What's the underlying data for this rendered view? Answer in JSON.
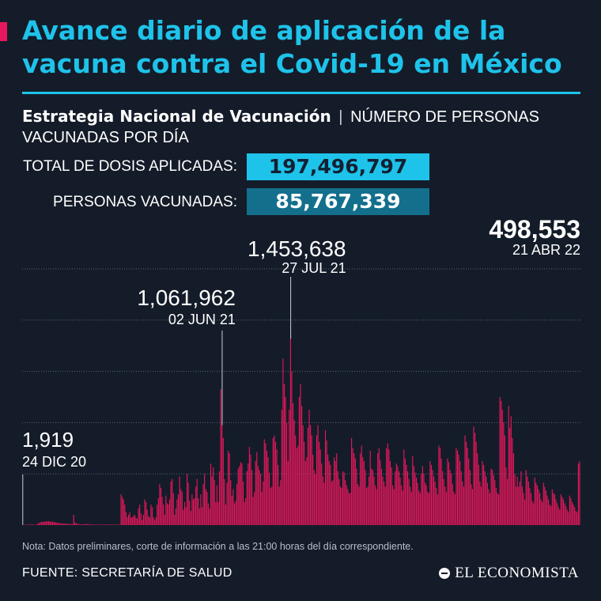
{
  "header": {
    "title": "Avance diario de aplicación de la vacuna contra el Covid-19 en México",
    "subtitle_strong": "Estrategia Nacional de Vacunación",
    "subtitle_sep": "|",
    "subtitle_rest": "NÚMERO DE PERSONAS VACUNADAS POR DÍA"
  },
  "stats": {
    "total_label": "TOTAL DE DOSIS APLICADAS:",
    "total_value": "197,496,797",
    "people_label": "PERSONAS VACUNADAS:",
    "people_value": "85,767,339"
  },
  "annotations": [
    {
      "id": "first",
      "value": "1,919",
      "date": "24 DIC 20",
      "day_index": 0
    },
    {
      "id": "jun",
      "value": "1,061,962",
      "date": "02 JUN 21",
      "day_index": 160
    },
    {
      "id": "jul",
      "value": "1,453,638",
      "date": "27 JUL 21",
      "day_index": 215
    },
    {
      "id": "last",
      "value": "498,553",
      "date": "21 ABR 22",
      "day_index": 483
    }
  ],
  "footer": {
    "note": "Nota: Datos preliminares, corte de información a las 21:00 horas del día correspondiente.",
    "source": "FUENTE: SECRETARÍA DE SALUD",
    "logo": "EL ECONOMISTA",
    "logo_icon": "el-economista-logo-icon"
  },
  "colors": {
    "background": "#141c29",
    "title": "#1ec3ea",
    "bars": "#e6175c",
    "total_box": "#1ec3ea",
    "people_box": "#146f8d"
  },
  "chart_data": {
    "type": "bar",
    "title": "",
    "xlabel": "",
    "ylabel": "",
    "x_start": "2020-12-24",
    "x_end": "2022-04-21",
    "ylim": [
      0,
      2000000
    ],
    "grid": true,
    "gridline_values": [
      400000,
      800000,
      1200000,
      1600000,
      2000000
    ],
    "series": [
      {
        "name": "",
        "note": "daily values estimated from the chart, one value per day",
        "values": [
          1919,
          2500,
          3000,
          3500,
          3500,
          4000,
          4500,
          4500,
          5000,
          3000,
          2500,
          2000,
          10000,
          15000,
          20000,
          25000,
          25000,
          25000,
          28000,
          28000,
          30000,
          30000,
          28000,
          26000,
          26000,
          24000,
          22000,
          20000,
          18000,
          16000,
          14000,
          14000,
          13000,
          12000,
          12000,
          11000,
          10000,
          9000,
          9000,
          8000,
          8000,
          80000,
          20000,
          15000,
          10000,
          8000,
          6000,
          5000,
          6000,
          7000,
          8000,
          8000,
          7000,
          6000,
          6000,
          5000,
          5000,
          4000,
          4000,
          4000,
          4000,
          4000,
          4000,
          4000,
          4000,
          4000,
          4000,
          4000,
          4000,
          4000,
          4000,
          4000,
          4000,
          4000,
          4000,
          4000,
          4000,
          4000,
          4000,
          240000,
          220000,
          200000,
          160000,
          100000,
          60000,
          80000,
          100000,
          60000,
          60000,
          70000,
          80000,
          60000,
          50000,
          130000,
          160000,
          90000,
          40000,
          80000,
          200000,
          180000,
          120000,
          70000,
          60000,
          160000,
          140000,
          60000,
          40000,
          60000,
          160000,
          210000,
          320000,
          290000,
          220000,
          160000,
          80000,
          230000,
          170000,
          160000,
          200000,
          340000,
          360000,
          250000,
          80000,
          130000,
          200000,
          240000,
          380000,
          280000,
          260000,
          120000,
          180000,
          140000,
          400000,
          330000,
          190000,
          110000,
          240000,
          200000,
          210000,
          300000,
          360000,
          210000,
          130000,
          240000,
          140000,
          320000,
          400000,
          280000,
          260000,
          170000,
          130000,
          480000,
          380000,
          450000,
          350000,
          180000,
          310000,
          180000,
          420000,
          1061962,
          780000,
          680000,
          360000,
          160000,
          330000,
          580000,
          560000,
          350000,
          230000,
          280000,
          170000,
          190000,
          320000,
          440000,
          460000,
          490000,
          480000,
          340000,
          180000,
          210000,
          420000,
          480000,
          610000,
          550000,
          430000,
          220000,
          260000,
          500000,
          570000,
          460000,
          430000,
          400000,
          260000,
          340000,
          670000,
          640000,
          580000,
          530000,
          410000,
          290000,
          300000,
          680000,
          700000,
          650000,
          590000,
          470000,
          300000,
          350000,
          900000,
          1300000,
          1100000,
          1000000,
          800000,
          500000,
          900000,
          1453638,
          1200000,
          950000,
          820000,
          700000,
          600000,
          620000,
          1000000,
          1100000,
          930000,
          780000,
          650000,
          500000,
          530000,
          760000,
          900000,
          780000,
          700000,
          550000,
          430000,
          400000,
          700000,
          780000,
          650000,
          590000,
          480000,
          380000,
          330000,
          740000,
          660000,
          550000,
          500000,
          470000,
          340000,
          350000,
          530000,
          500000,
          560000,
          420000,
          360000,
          300000,
          290000,
          420000,
          410000,
          350000,
          310000,
          280000,
          250000,
          250000,
          680000,
          600000,
          560000,
          520000,
          440000,
          320000,
          300000,
          560000,
          620000,
          530000,
          500000,
          430000,
          290000,
          300000,
          380000,
          580000,
          440000,
          430000,
          380000,
          310000,
          280000,
          560000,
          600000,
          510000,
          440000,
          380000,
          340000,
          300000,
          600000,
          640000,
          590000,
          500000,
          450000,
          310000,
          280000,
          420000,
          480000,
          460000,
          420000,
          370000,
          310000,
          270000,
          590000,
          520000,
          470000,
          420000,
          360000,
          300000,
          260000,
          540000,
          460000,
          410000,
          370000,
          330000,
          270000,
          250000,
          400000,
          460000,
          400000,
          330000,
          310000,
          260000,
          250000,
          500000,
          470000,
          430000,
          380000,
          340000,
          290000,
          240000,
          620000,
          600000,
          520000,
          420000,
          360000,
          300000,
          260000,
          520000,
          490000,
          430000,
          400000,
          320000,
          260000,
          240000,
          600000,
          580000,
          550000,
          500000,
          420000,
          340000,
          300000,
          700000,
          650000,
          600000,
          520000,
          430000,
          320000,
          280000,
          770000,
          720000,
          650000,
          560000,
          470000,
          340000,
          300000,
          500000,
          470000,
          420000,
          380000,
          330000,
          280000,
          250000,
          440000,
          430000,
          390000,
          350000,
          290000,
          250000,
          240000,
          1000000,
          970000,
          900000,
          800000,
          700000,
          450000,
          360000,
          930000,
          760000,
          850000,
          680000,
          560000,
          400000,
          300000,
          380000,
          300000,
          340000,
          420000,
          300000,
          250000,
          200000,
          430000,
          380000,
          340000,
          290000,
          250000,
          190000,
          170000,
          370000,
          330000,
          310000,
          280000,
          250000,
          200000,
          180000,
          330000,
          300000,
          270000,
          230000,
          200000,
          160000,
          150000,
          280000,
          250000,
          240000,
          200000,
          170000,
          140000,
          120000,
          240000,
          220000,
          200000,
          170000,
          150000,
          120000,
          100000,
          230000,
          210000,
          180000,
          160000,
          140000,
          110000,
          100000,
          480000,
          498553
        ]
      }
    ]
  }
}
